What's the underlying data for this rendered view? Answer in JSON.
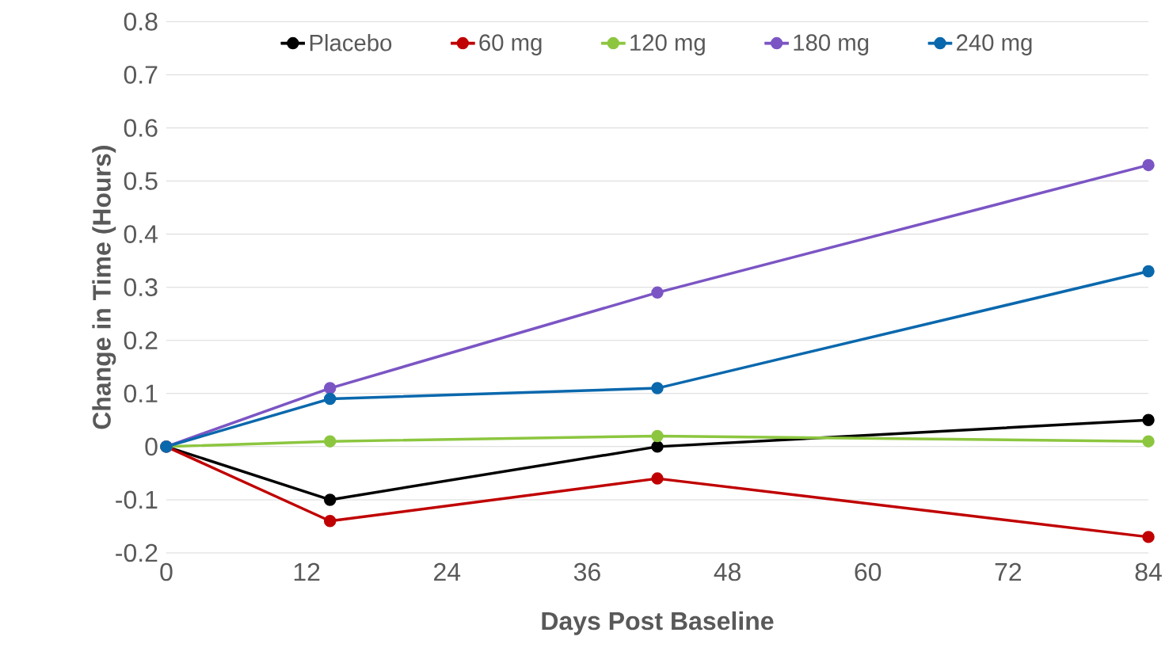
{
  "chart_data": {
    "type": "line",
    "xlabel": "Days Post Baseline",
    "ylabel": "Change in Time (Hours)",
    "x": [
      0,
      14,
      42,
      84
    ],
    "series": [
      {
        "name": "Placebo",
        "color": "#000000",
        "values": [
          0,
          -0.1,
          0,
          0.05
        ]
      },
      {
        "name": "60 mg",
        "color": "#c00000",
        "values": [
          0,
          -0.14,
          -0.06,
          -0.17
        ]
      },
      {
        "name": "120 mg",
        "color": "#8cc63f",
        "values": [
          0,
          0.01,
          0.02,
          0.01
        ]
      },
      {
        "name": "180 mg",
        "color": "#7b55c4",
        "values": [
          0,
          0.11,
          0.29,
          0.53
        ]
      },
      {
        "name": "240 mg",
        "color": "#0a68ad",
        "values": [
          0,
          0.09,
          0.11,
          0.33
        ]
      }
    ],
    "xlim": [
      0,
      84
    ],
    "xticks": [
      0,
      12,
      24,
      36,
      48,
      60,
      72,
      84
    ],
    "ylim": [
      -0.2,
      0.8
    ],
    "yticks": [
      -0.2,
      -0.1,
      0,
      0.1,
      0.2,
      0.3,
      0.4,
      0.5,
      0.6,
      0.7,
      0.8
    ],
    "grid": "y",
    "legend": "top",
    "marker": "circle",
    "line_style": "solid"
  }
}
